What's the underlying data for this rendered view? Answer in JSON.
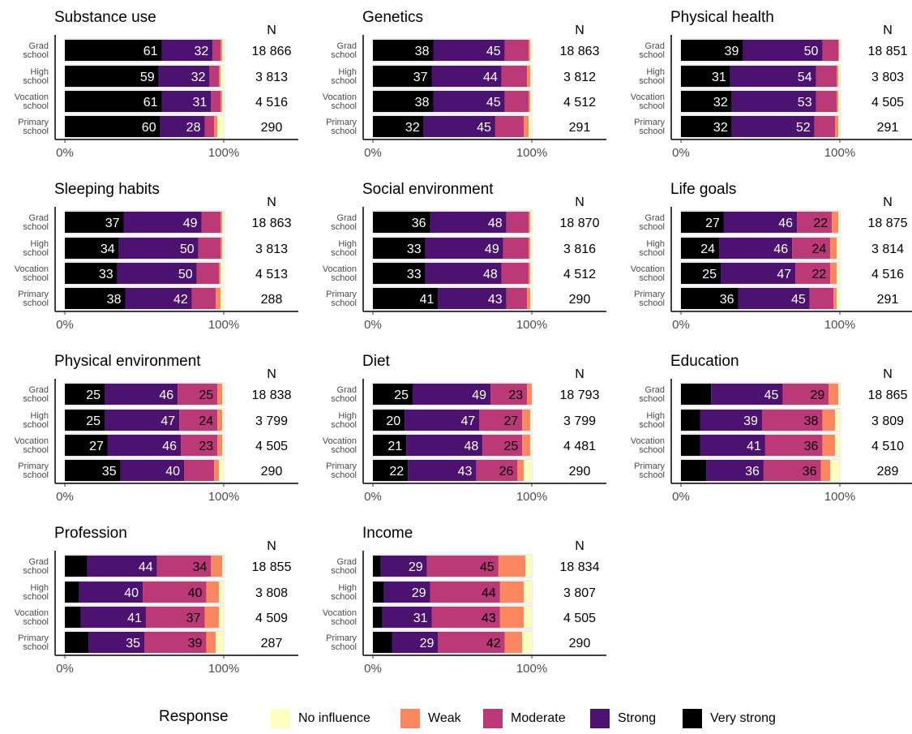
{
  "chart_data": {
    "type": "bar",
    "orientation": "horizontal",
    "stacked": true,
    "categories": [
      "Grad school",
      "High school",
      "Vocation school",
      "Primary school"
    ],
    "category_lines": [
      [
        "Grad",
        "school"
      ],
      [
        "High",
        "school"
      ],
      [
        "Vocation",
        "school"
      ],
      [
        "Primary",
        "school"
      ]
    ],
    "xlim": [
      0,
      100
    ],
    "x_ticks": [
      "0%",
      "100%"
    ],
    "n_header": "N",
    "series_order": [
      "Very strong",
      "Strong",
      "Moderate",
      "Weak",
      "No influence"
    ],
    "colors": {
      "Very strong": "#000000",
      "Strong": "#4b1270",
      "Moderate": "#bb3977",
      "Weak": "#fb8761",
      "No influence": "#fcfdbf"
    },
    "legend": {
      "title": "Response",
      "position": "bottom",
      "items": [
        "No influence",
        "Weak",
        "Moderate",
        "Strong",
        "Very strong"
      ]
    },
    "panels": [
      {
        "title": "Substance use",
        "rows": [
          {
            "n": "18 866",
            "values": {
              "Very strong": 61,
              "Strong": 32,
              "Moderate": 5,
              "Weak": 1,
              "No influence": 1
            },
            "labels": {
              "Very strong": "61",
              "Strong": "32"
            }
          },
          {
            "n": "3 813",
            "values": {
              "Very strong": 59,
              "Strong": 32,
              "Moderate": 6,
              "Weak": 1,
              "No influence": 2
            },
            "labels": {
              "Very strong": "59",
              "Strong": "32"
            }
          },
          {
            "n": "4 516",
            "values": {
              "Very strong": 61,
              "Strong": 31,
              "Moderate": 6,
              "Weak": 1,
              "No influence": 1
            },
            "labels": {
              "Very strong": "61",
              "Strong": "31"
            }
          },
          {
            "n": "290",
            "values": {
              "Very strong": 60,
              "Strong": 28,
              "Moderate": 6,
              "Weak": 2,
              "No influence": 4
            },
            "labels": {
              "Very strong": "60",
              "Strong": "28"
            }
          }
        ]
      },
      {
        "title": "Genetics",
        "rows": [
          {
            "n": "18 863",
            "values": {
              "Very strong": 38,
              "Strong": 45,
              "Moderate": 15,
              "Weak": 1,
              "No influence": 1
            },
            "labels": {
              "Very strong": "38",
              "Strong": "45"
            }
          },
          {
            "n": "3 812",
            "values": {
              "Very strong": 37,
              "Strong": 44,
              "Moderate": 16,
              "Weak": 2,
              "No influence": 1
            },
            "labels": {
              "Very strong": "37",
              "Strong": "44"
            }
          },
          {
            "n": "4 512",
            "values": {
              "Very strong": 38,
              "Strong": 45,
              "Moderate": 15,
              "Weak": 1,
              "No influence": 1
            },
            "labels": {
              "Very strong": "38",
              "Strong": "45"
            }
          },
          {
            "n": "291",
            "values": {
              "Very strong": 32,
              "Strong": 45,
              "Moderate": 18,
              "Weak": 3,
              "No influence": 2
            },
            "labels": {
              "Very strong": "32",
              "Strong": "45"
            }
          }
        ]
      },
      {
        "title": "Physical health",
        "rows": [
          {
            "n": "18 851",
            "values": {
              "Very strong": 39,
              "Strong": 50,
              "Moderate": 10,
              "Weak": 0.5,
              "No influence": 0.5
            },
            "labels": {
              "Very strong": "39",
              "Strong": "50"
            }
          },
          {
            "n": "3 803",
            "values": {
              "Very strong": 31,
              "Strong": 54,
              "Moderate": 13,
              "Weak": 1,
              "No influence": 1
            },
            "labels": {
              "Very strong": "31",
              "Strong": "54"
            }
          },
          {
            "n": "4 505",
            "values": {
              "Very strong": 32,
              "Strong": 53,
              "Moderate": 13,
              "Weak": 1,
              "No influence": 1
            },
            "labels": {
              "Very strong": "32",
              "Strong": "53"
            }
          },
          {
            "n": "291",
            "values": {
              "Very strong": 32,
              "Strong": 52,
              "Moderate": 13,
              "Weak": 2,
              "No influence": 1
            },
            "labels": {
              "Very strong": "32",
              "Strong": "52"
            }
          }
        ]
      },
      {
        "title": "Sleeping habits",
        "rows": [
          {
            "n": "18 863",
            "values": {
              "Very strong": 37,
              "Strong": 49,
              "Moderate": 12,
              "Weak": 1,
              "No influence": 1
            },
            "labels": {
              "Very strong": "37",
              "Strong": "49"
            }
          },
          {
            "n": "3 813",
            "values": {
              "Very strong": 34,
              "Strong": 50,
              "Moderate": 14,
              "Weak": 1,
              "No influence": 1
            },
            "labels": {
              "Very strong": "34",
              "Strong": "50"
            }
          },
          {
            "n": "4 513",
            "values": {
              "Very strong": 33,
              "Strong": 50,
              "Moderate": 14,
              "Weak": 1,
              "No influence": 2
            },
            "labels": {
              "Very strong": "33",
              "Strong": "50"
            }
          },
          {
            "n": "288",
            "values": {
              "Very strong": 38,
              "Strong": 42,
              "Moderate": 15,
              "Weak": 3,
              "No influence": 2
            },
            "labels": {
              "Very strong": "38",
              "Strong": "42"
            }
          }
        ]
      },
      {
        "title": "Social environment",
        "rows": [
          {
            "n": "18 870",
            "values": {
              "Very strong": 36,
              "Strong": 48,
              "Moderate": 14,
              "Weak": 1,
              "No influence": 1
            },
            "labels": {
              "Very strong": "36",
              "Strong": "48"
            }
          },
          {
            "n": "3 816",
            "values": {
              "Very strong": 33,
              "Strong": 49,
              "Moderate": 16,
              "Weak": 1,
              "No influence": 1
            },
            "labels": {
              "Very strong": "33",
              "Strong": "49"
            }
          },
          {
            "n": "4 512",
            "values": {
              "Very strong": 33,
              "Strong": 48,
              "Moderate": 17,
              "Weak": 1,
              "No influence": 1
            },
            "labels": {
              "Very strong": "33",
              "Strong": "48"
            }
          },
          {
            "n": "290",
            "values": {
              "Very strong": 41,
              "Strong": 43,
              "Moderate": 13,
              "Weak": 2,
              "No influence": 1
            },
            "labels": {
              "Very strong": "41",
              "Strong": "43"
            }
          }
        ]
      },
      {
        "title": "Life goals",
        "rows": [
          {
            "n": "18 875",
            "values": {
              "Very strong": 27,
              "Strong": 46,
              "Moderate": 22,
              "Weak": 4,
              "No influence": 1
            },
            "labels": {
              "Very strong": "27",
              "Strong": "46",
              "Moderate": "22"
            }
          },
          {
            "n": "3 814",
            "values": {
              "Very strong": 24,
              "Strong": 46,
              "Moderate": 24,
              "Weak": 4,
              "No influence": 2
            },
            "labels": {
              "Very strong": "24",
              "Strong": "46",
              "Moderate": "24"
            }
          },
          {
            "n": "4 516",
            "values": {
              "Very strong": 25,
              "Strong": 47,
              "Moderate": 22,
              "Weak": 4,
              "No influence": 2
            },
            "labels": {
              "Very strong": "25",
              "Strong": "47",
              "Moderate": "22"
            }
          },
          {
            "n": "291",
            "values": {
              "Very strong": 36,
              "Strong": 45,
              "Moderate": 15,
              "Weak": 2,
              "No influence": 2
            },
            "labels": {
              "Very strong": "36",
              "Strong": "45"
            }
          }
        ]
      },
      {
        "title": "Physical environment",
        "rows": [
          {
            "n": "18 838",
            "values": {
              "Very strong": 25,
              "Strong": 46,
              "Moderate": 25,
              "Weak": 3,
              "No influence": 1
            },
            "labels": {
              "Very strong": "25",
              "Strong": "46",
              "Moderate": "25"
            }
          },
          {
            "n": "3 799",
            "values": {
              "Very strong": 25,
              "Strong": 47,
              "Moderate": 24,
              "Weak": 3,
              "No influence": 1
            },
            "labels": {
              "Very strong": "25",
              "Strong": "47",
              "Moderate": "24"
            }
          },
          {
            "n": "4 505",
            "values": {
              "Very strong": 27,
              "Strong": 46,
              "Moderate": 23,
              "Weak": 3,
              "No influence": 1
            },
            "labels": {
              "Very strong": "27",
              "Strong": "46",
              "Moderate": "23"
            }
          },
          {
            "n": "290",
            "values": {
              "Very strong": 35,
              "Strong": 40,
              "Moderate": 19,
              "Weak": 3,
              "No influence": 3
            },
            "labels": {
              "Very strong": "35",
              "Strong": "40"
            }
          }
        ]
      },
      {
        "title": "Diet",
        "rows": [
          {
            "n": "18 793",
            "values": {
              "Very strong": 25,
              "Strong": 49,
              "Moderate": 23,
              "Weak": 3,
              "No influence": 0
            },
            "labels": {
              "Very strong": "25",
              "Strong": "49",
              "Moderate": "23"
            }
          },
          {
            "n": "3 799",
            "values": {
              "Very strong": 20,
              "Strong": 47,
              "Moderate": 27,
              "Weak": 5,
              "No influence": 1
            },
            "labels": {
              "Very strong": "20",
              "Strong": "47",
              "Moderate": "27"
            }
          },
          {
            "n": "4 481",
            "values": {
              "Very strong": 21,
              "Strong": 48,
              "Moderate": 25,
              "Weak": 5,
              "No influence": 1
            },
            "labels": {
              "Very strong": "21",
              "Strong": "48",
              "Moderate": "25"
            }
          },
          {
            "n": "290",
            "values": {
              "Very strong": 22,
              "Strong": 43,
              "Moderate": 26,
              "Weak": 4,
              "No influence": 5
            },
            "labels": {
              "Very strong": "22",
              "Strong": "43",
              "Moderate": "26"
            }
          }
        ]
      },
      {
        "title": "Education",
        "rows": [
          {
            "n": "18 865",
            "values": {
              "Very strong": 19,
              "Strong": 45,
              "Moderate": 29,
              "Weak": 6,
              "No influence": 1
            },
            "labels": {
              "Strong": "45",
              "Moderate": "29"
            }
          },
          {
            "n": "3 809",
            "values": {
              "Very strong": 12,
              "Strong": 39,
              "Moderate": 38,
              "Weak": 8,
              "No influence": 3
            },
            "labels": {
              "Strong": "39",
              "Moderate": "38"
            }
          },
          {
            "n": "4 510",
            "values": {
              "Very strong": 12,
              "Strong": 41,
              "Moderate": 36,
              "Weak": 8,
              "No influence": 3
            },
            "labels": {
              "Strong": "41",
              "Moderate": "36"
            }
          },
          {
            "n": "289",
            "values": {
              "Very strong": 16,
              "Strong": 36,
              "Moderate": 36,
              "Weak": 6,
              "No influence": 6
            },
            "labels": {
              "Strong": "36",
              "Moderate": "36"
            }
          }
        ]
      },
      {
        "title": "Profession",
        "rows": [
          {
            "n": "18 855",
            "values": {
              "Very strong": 14,
              "Strong": 44,
              "Moderate": 34,
              "Weak": 7,
              "No influence": 1
            },
            "labels": {
              "Strong": "44",
              "Moderate": "34"
            }
          },
          {
            "n": "3 808",
            "values": {
              "Very strong": 9,
              "Strong": 40,
              "Moderate": 40,
              "Weak": 8,
              "No influence": 3
            },
            "labels": {
              "Strong": "40",
              "Moderate": "40"
            }
          },
          {
            "n": "4 509",
            "values": {
              "Very strong": 10,
              "Strong": 41,
              "Moderate": 37,
              "Weak": 9,
              "No influence": 3
            },
            "labels": {
              "Strong": "41",
              "Moderate": "37"
            }
          },
          {
            "n": "287",
            "values": {
              "Very strong": 15,
              "Strong": 35,
              "Moderate": 39,
              "Weak": 6,
              "No influence": 5
            },
            "labels": {
              "Strong": "35",
              "Moderate": "39"
            }
          }
        ]
      },
      {
        "title": "Income",
        "rows": [
          {
            "n": "18 834",
            "values": {
              "Very strong": 5,
              "Strong": 29,
              "Moderate": 45,
              "Weak": 17,
              "No influence": 4
            },
            "labels": {
              "Strong": "29",
              "Moderate": "45"
            }
          },
          {
            "n": "3 807",
            "values": {
              "Very strong": 7,
              "Strong": 29,
              "Moderate": 44,
              "Weak": 15,
              "No influence": 5
            },
            "labels": {
              "Strong": "29",
              "Moderate": "44"
            }
          },
          {
            "n": "4 505",
            "values": {
              "Very strong": 6,
              "Strong": 31,
              "Moderate": 43,
              "Weak": 15,
              "No influence": 5
            },
            "labels": {
              "Strong": "31",
              "Moderate": "43"
            }
          },
          {
            "n": "290",
            "values": {
              "Very strong": 12,
              "Strong": 29,
              "Moderate": 42,
              "Weak": 11,
              "No influence": 6
            },
            "labels": {
              "Strong": "29",
              "Moderate": "42"
            }
          }
        ]
      }
    ]
  }
}
